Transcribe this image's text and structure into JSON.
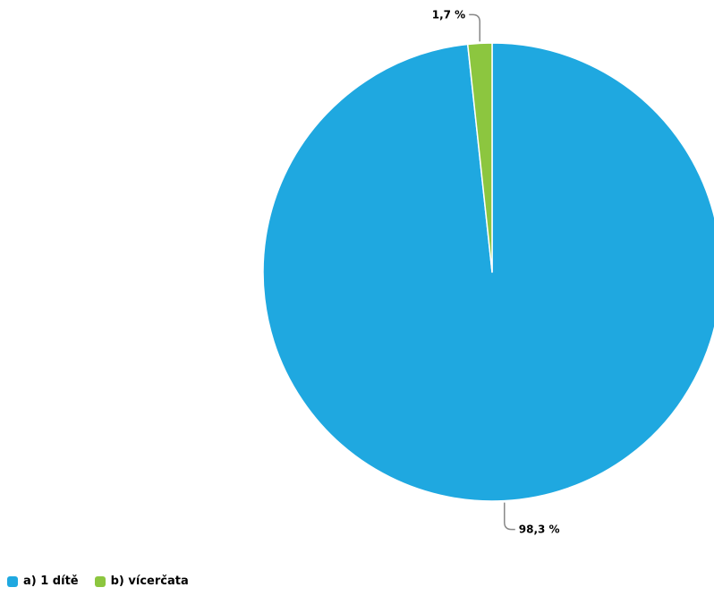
{
  "chart_data": {
    "type": "pie",
    "categories": [
      "a) 1 dítě",
      "b) vícerčata"
    ],
    "values": [
      98.3,
      1.7
    ],
    "value_labels": [
      "98,3 %",
      "1,7 %"
    ],
    "colors": [
      "#1fa8e0",
      "#8cc63f"
    ],
    "legend_position": "bottom-left",
    "title": ""
  }
}
